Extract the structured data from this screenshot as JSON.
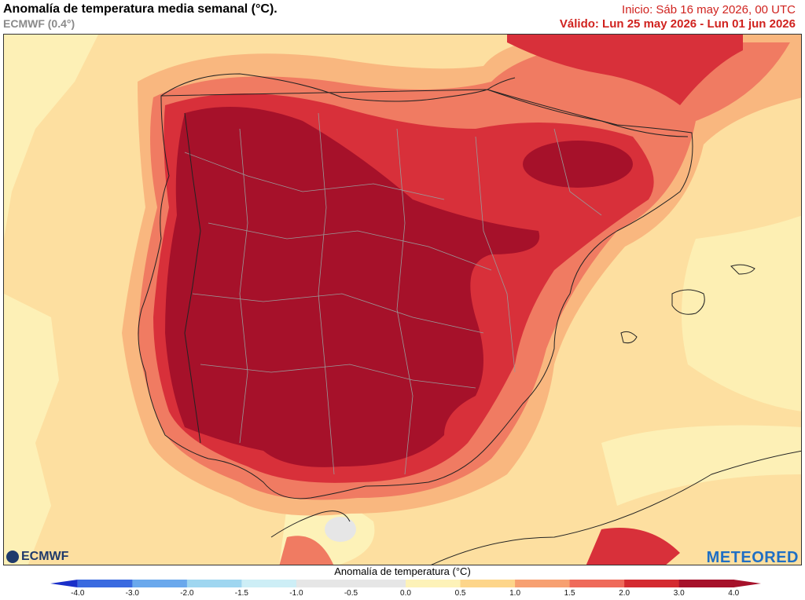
{
  "header": {
    "title": "Anomalía de temperatura media semanal (°C).",
    "model": "ECMWF (0.4°)",
    "init": "Inicio: Sáb 16 may 2026, 00 UTC",
    "valid": "Válido: Lun 25 may 2026 - Lun 01 jun 2026"
  },
  "logos": {
    "ecmwf": "ECMWF",
    "meteored": "METEORED"
  },
  "colorbar": {
    "title": "Anomalía de temperatura (°C)",
    "ticks": [
      "-4.0",
      "-3.0",
      "-2.0",
      "-1.5",
      "-1.0",
      "-0.5",
      "0.0",
      "0.5",
      "1.0",
      "1.5",
      "2.0",
      "3.0",
      "4.0"
    ],
    "colors": [
      "#1a2fc9",
      "#3a6ae0",
      "#6aa8ec",
      "#9fd6f0",
      "#cdeef6",
      "#e6e6e6",
      "#e6e6e6",
      "#fdf2b8",
      "#fdd58a",
      "#f7a071",
      "#ef6a5a",
      "#d42a30",
      "#a6112a"
    ]
  },
  "map_legend_colors": {
    "sea_background": "#fddfa0",
    "anom_0": "#e6e6e6",
    "anom_0_5": "#fdf2b8",
    "anom_1": "#fddfa0",
    "anom_1_5": "#f9b77f",
    "anom_2": "#f07b62",
    "anom_3": "#d8303a",
    "anom_4": "#a6112a"
  }
}
